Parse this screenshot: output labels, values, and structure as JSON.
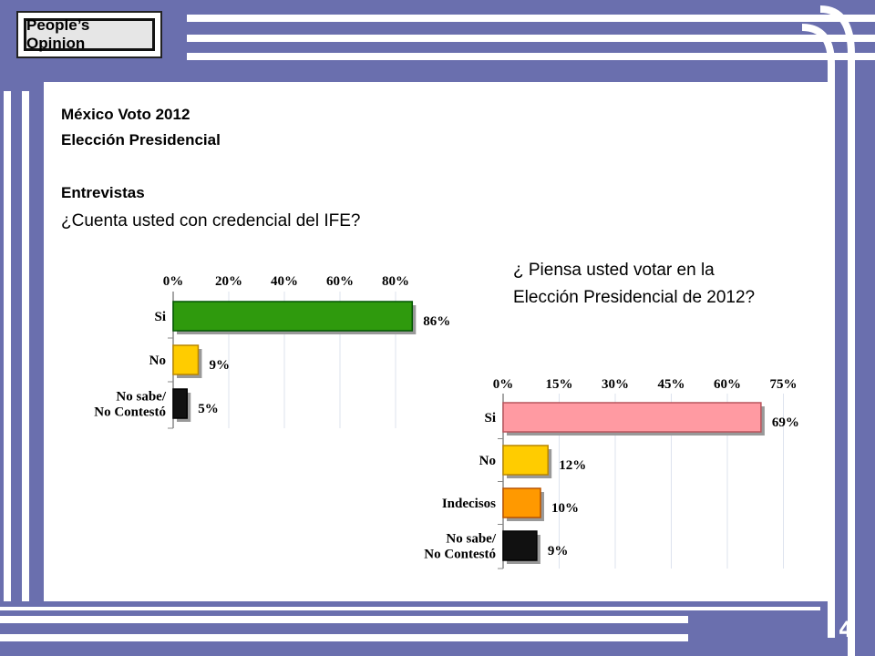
{
  "header": {
    "logo_text": "People’s Opinion"
  },
  "titles": {
    "line1": "México Voto 2012",
    "line2": "Elección Presidencial",
    "section": "Entrevistas"
  },
  "chart_data": [
    {
      "type": "bar",
      "orientation": "horizontal",
      "question": "¿Cuenta usted con credencial del IFE?",
      "categories": [
        "Si",
        "No",
        "No sabe/\nNo Contestó"
      ],
      "values": [
        86,
        9,
        5
      ],
      "value_labels": [
        "86%",
        "9%",
        "5%"
      ],
      "ticks": [
        "0%",
        "20%",
        "40%",
        "60%",
        "80%"
      ],
      "xlim": [
        0,
        86
      ],
      "grid": true,
      "colors": [
        "#2f9a0d",
        "#ffcc00",
        "#111111"
      ]
    },
    {
      "type": "bar",
      "orientation": "horizontal",
      "question": "¿ Piensa usted  votar en la\nElección  Presidencial de 2012?",
      "categories": [
        "Si",
        "No",
        "Indecisos",
        "No sabe/\nNo Contestó"
      ],
      "values": [
        69,
        12,
        10,
        9
      ],
      "value_labels": [
        "69%",
        "12%",
        "10%",
        "9%"
      ],
      "ticks": [
        "0%",
        "15%",
        "30%",
        "45%",
        "60%",
        "75%"
      ],
      "xlim": [
        0,
        69
      ],
      "grid": true,
      "colors": [
        "#ff9aa2",
        "#ffcc00",
        "#ff9900",
        "#111111"
      ]
    }
  ],
  "footer": {
    "page_number": "4"
  }
}
